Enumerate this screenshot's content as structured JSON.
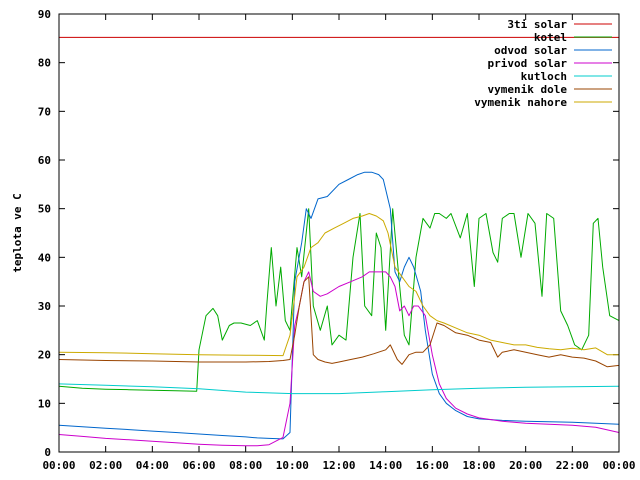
{
  "chart_data": {
    "type": "line",
    "title": "",
    "xlabel": "",
    "ylabel": "teplota ve C",
    "ylim": [
      0,
      90
    ],
    "yticks": [
      "0",
      "10",
      "20",
      "30",
      "40",
      "50",
      "60",
      "70",
      "80",
      "90"
    ],
    "xlim": [
      0,
      24
    ],
    "xticks": [
      "00:00",
      "02:00",
      "04:00",
      "06:00",
      "08:00",
      "10:00",
      "12:00",
      "14:00",
      "16:00",
      "18:00",
      "20:00",
      "22:00",
      "00:00"
    ],
    "grid": false,
    "legend_position": "top-right",
    "series": [
      {
        "name": "3ti solar",
        "color": "#cc0000",
        "x": [
          0,
          24
        ],
        "y": [
          85.2,
          85.2
        ]
      },
      {
        "name": "kotel",
        "color": "#00aa00",
        "x": [
          0,
          1,
          2,
          3,
          4,
          5,
          5.9,
          6.0,
          6.3,
          6.6,
          6.8,
          7.0,
          7.3,
          7.5,
          7.8,
          8.2,
          8.5,
          8.8,
          8.9,
          9.1,
          9.3,
          9.5,
          9.7,
          9.9,
          10.2,
          10.4,
          10.7,
          10.9,
          11.2,
          11.5,
          11.7,
          12.0,
          12.3,
          12.6,
          12.9,
          13.1,
          13.4,
          13.6,
          13.8,
          14.0,
          14.3,
          14.6,
          14.8,
          15.0,
          15.3,
          15.6,
          15.9,
          16.1,
          16.3,
          16.6,
          16.8,
          17.2,
          17.5,
          17.8,
          18.0,
          18.3,
          18.6,
          18.8,
          19.0,
          19.3,
          19.5,
          19.8,
          20.1,
          20.4,
          20.7,
          20.9,
          21.2,
          21.5,
          21.8,
          22.1,
          22.4,
          22.7,
          22.9,
          23.1,
          23.3,
          23.6,
          24.0
        ],
        "y": [
          13.5,
          13.1,
          12.9,
          12.8,
          12.7,
          12.6,
          12.5,
          21,
          28,
          29.5,
          28,
          23,
          26,
          26.5,
          26.5,
          26,
          27,
          23,
          30,
          42,
          30,
          38,
          27,
          25,
          42,
          36,
          50,
          30,
          25,
          30,
          22,
          24,
          23,
          40,
          49,
          30,
          28,
          45,
          42,
          25,
          50,
          34,
          24,
          22,
          40,
          48,
          46,
          49,
          49,
          48,
          49,
          44,
          49,
          34,
          48,
          49,
          41,
          39,
          48,
          49,
          49,
          40,
          49,
          47,
          32,
          49,
          48,
          29,
          26,
          22,
          21,
          24,
          47,
          48,
          38,
          28,
          27
        ]
      },
      {
        "name": "odvod solar",
        "color": "#0066cc",
        "x": [
          0,
          1,
          2,
          3,
          4,
          5,
          6,
          7,
          8,
          8.5,
          9,
          9.6,
          9.9,
          10.1,
          10.4,
          10.6,
          10.8,
          11.1,
          11.5,
          12.0,
          12.4,
          12.8,
          13.1,
          13.4,
          13.7,
          13.9,
          14.2,
          14.4,
          14.6,
          14.8,
          15.0,
          15.2,
          15.5,
          15.7,
          16.0,
          16.3,
          16.6,
          17.0,
          17.5,
          18.0,
          19.0,
          20.0,
          21.0,
          22.0,
          23.0,
          24.0
        ],
        "y": [
          5.5,
          5.2,
          4.9,
          4.6,
          4.3,
          4.0,
          3.7,
          3.4,
          3.1,
          2.9,
          2.8,
          2.7,
          4,
          35,
          43,
          50,
          48,
          52,
          52.5,
          55,
          56,
          57,
          57.5,
          57.5,
          57,
          56,
          50,
          37,
          35,
          38,
          40,
          38,
          33,
          25,
          16,
          12,
          10,
          8.5,
          7.3,
          6.8,
          6.5,
          6.3,
          6.2,
          6.1,
          5.9,
          5.7
        ]
      },
      {
        "name": "privod solar",
        "color": "#cc00cc",
        "x": [
          0,
          1,
          2,
          3,
          4,
          5,
          6,
          7,
          8,
          8.5,
          9,
          9.6,
          9.9,
          10.1,
          10.3,
          10.5,
          10.7,
          10.9,
          11.2,
          11.5,
          12.0,
          12.5,
          13.0,
          13.3,
          13.7,
          14.0,
          14.2,
          14.4,
          14.6,
          14.8,
          15.0,
          15.2,
          15.4,
          15.7,
          16.0,
          16.3,
          16.6,
          17.0,
          17.5,
          18.0,
          19.0,
          20.0,
          21.0,
          22.0,
          23.0,
          24.0
        ],
        "y": [
          3.6,
          3.2,
          2.8,
          2.5,
          2.2,
          1.9,
          1.6,
          1.4,
          1.3,
          1.3,
          1.5,
          3,
          10,
          26,
          30,
          35,
          37,
          33,
          32,
          32.5,
          34,
          35,
          36,
          37,
          37,
          37,
          36,
          34,
          29,
          30,
          28,
          30,
          30,
          28,
          20,
          14,
          11,
          9,
          7.8,
          7,
          6.3,
          5.9,
          5.7,
          5.5,
          5.1,
          4.0
        ]
      },
      {
        "name": "kutloch",
        "color": "#00cccc",
        "x": [
          0,
          2,
          4,
          6,
          8,
          10,
          12,
          14,
          16,
          18,
          20,
          22,
          24
        ],
        "y": [
          14,
          13.7,
          13.4,
          13.0,
          12.3,
          12.0,
          12.0,
          12.4,
          12.8,
          13.1,
          13.3,
          13.4,
          13.5
        ]
      },
      {
        "name": "vymenik dole",
        "color": "#994400",
        "x": [
          0,
          2,
          4,
          6,
          8,
          9,
          9.6,
          9.9,
          10.1,
          10.3,
          10.5,
          10.7,
          10.9,
          11.1,
          11.4,
          11.7,
          12.0,
          12.5,
          13.0,
          13.5,
          14.0,
          14.2,
          14.5,
          14.7,
          15.0,
          15.3,
          15.6,
          15.9,
          16.2,
          16.5,
          17.0,
          17.5,
          18.0,
          18.5,
          18.8,
          19.0,
          19.5,
          20.0,
          20.5,
          21.0,
          21.5,
          22.0,
          22.5,
          23.0,
          23.5,
          24.0
        ],
        "y": [
          19,
          18.8,
          18.7,
          18.5,
          18.5,
          18.6,
          18.8,
          19,
          24,
          30,
          35,
          36,
          20,
          19,
          18.5,
          18.2,
          18.5,
          19,
          19.5,
          20.2,
          21,
          22,
          19,
          18,
          20,
          20.5,
          20.5,
          22,
          26.5,
          26,
          24.5,
          24,
          23,
          22.5,
          19.5,
          20.5,
          21,
          20.5,
          20,
          19.5,
          20,
          19.5,
          19.3,
          18.7,
          17.5,
          17.8
        ]
      },
      {
        "name": "vymenik nahore",
        "color": "#ccaa00",
        "x": [
          0,
          2,
          4,
          6,
          8,
          9.6,
          9.9,
          10.2,
          10.5,
          10.8,
          11.1,
          11.4,
          11.8,
          12.2,
          12.6,
          13.0,
          13.3,
          13.6,
          13.9,
          14.1,
          14.4,
          14.7,
          15.0,
          15.3,
          15.6,
          15.9,
          16.2,
          16.5,
          17.0,
          17.5,
          18.0,
          18.5,
          19.0,
          19.5,
          20.0,
          20.5,
          21.0,
          21.5,
          22.0,
          22.5,
          23.0,
          23.5,
          24.0
        ],
        "y": [
          20.5,
          20.4,
          20.2,
          20.0,
          19.9,
          19.8,
          24,
          36,
          38,
          42,
          43,
          45,
          46,
          47,
          48,
          48.5,
          49,
          48.5,
          47.5,
          45,
          38,
          36,
          34,
          33,
          30,
          28,
          27,
          26.5,
          25.5,
          24.5,
          24,
          23,
          22.5,
          22,
          22,
          21.5,
          21.2,
          21,
          21.3,
          21,
          21.4,
          20,
          20
        ]
      }
    ]
  }
}
